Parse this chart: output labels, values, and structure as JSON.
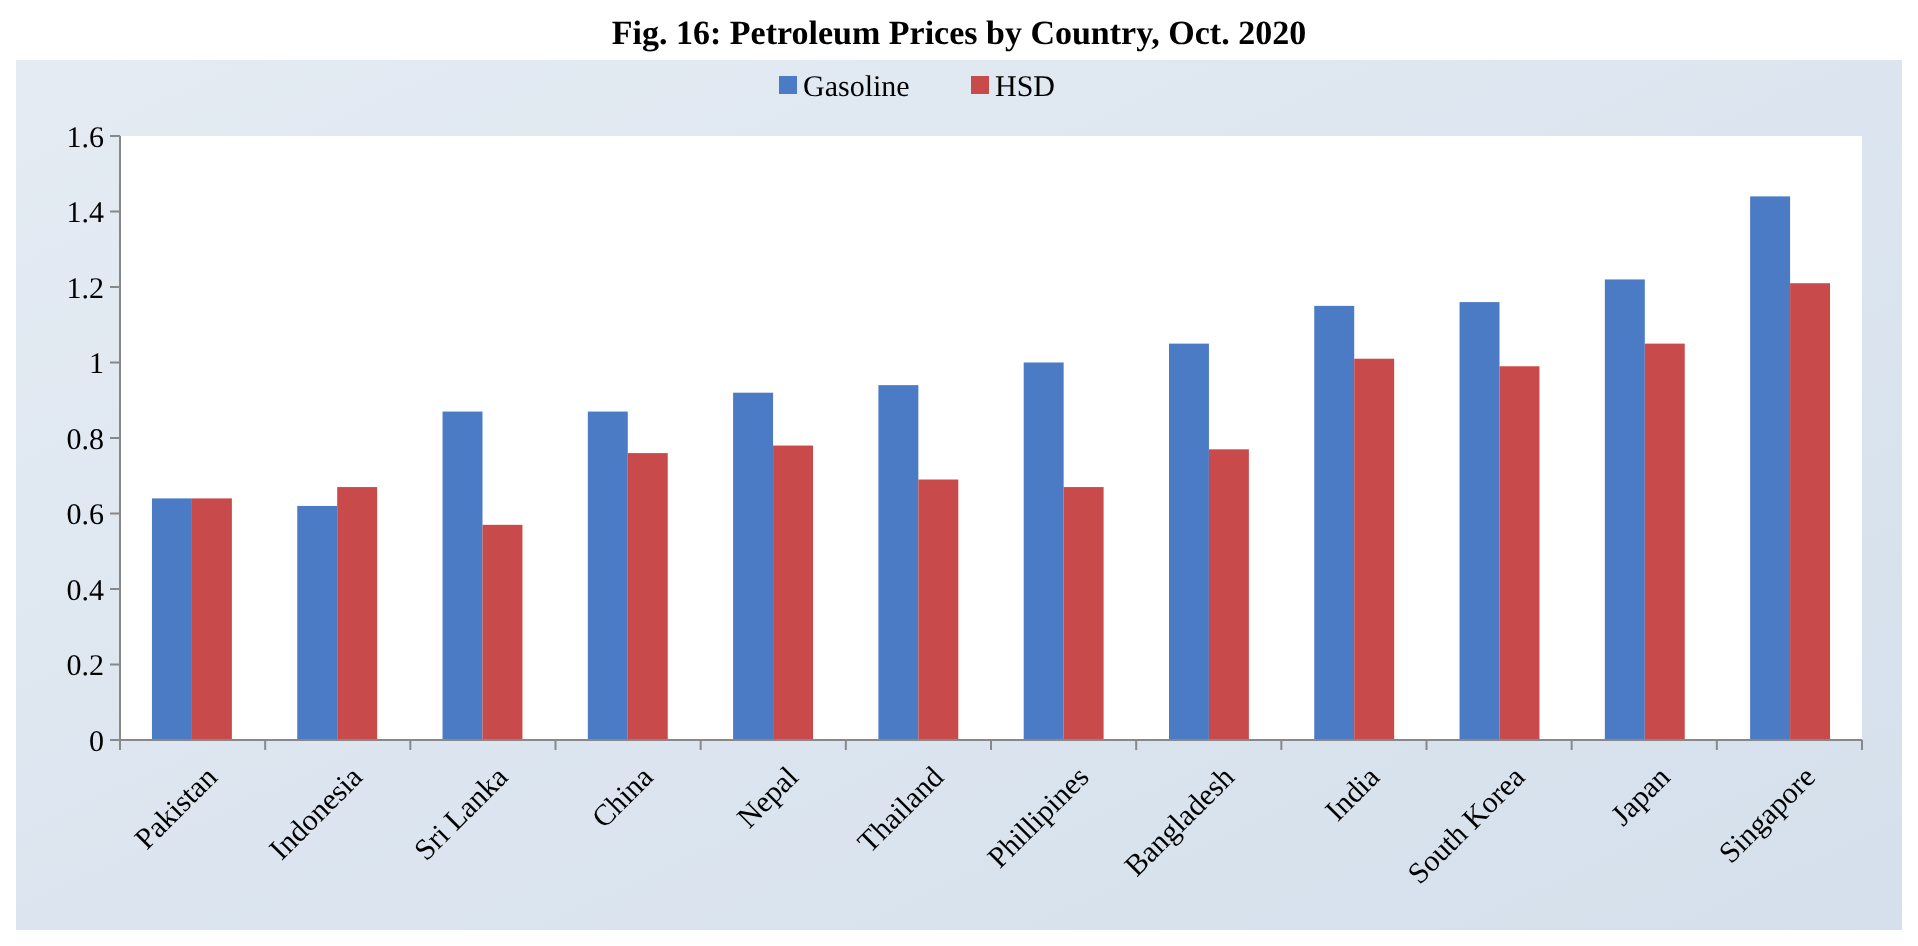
{
  "chart_data": {
    "type": "bar",
    "title": "Fig. 16: Petroleum Prices by Country, Oct. 2020",
    "categories": [
      "Pakistan",
      "Indonesia",
      "Sri Lanka",
      "China",
      "Nepal",
      "Thailand",
      "Phillipines",
      "Bangladesh",
      "India",
      "South Korea",
      "Japan",
      "Singapore"
    ],
    "series": [
      {
        "name": "Gasoline",
        "color": "#4a7bc4",
        "values": [
          0.64,
          0.62,
          0.87,
          0.87,
          0.92,
          0.94,
          1.0,
          1.05,
          1.15,
          1.16,
          1.22,
          1.44
        ]
      },
      {
        "name": "HSD",
        "color": "#c94a4a",
        "values": [
          0.64,
          0.67,
          0.57,
          0.76,
          0.78,
          0.69,
          0.67,
          0.77,
          1.01,
          0.99,
          1.05,
          1.21
        ]
      }
    ],
    "ylim": [
      0,
      1.6
    ],
    "yticks": [
      0,
      0.2,
      0.4,
      0.6,
      0.8,
      1,
      1.2,
      1.4,
      1.6
    ],
    "grid": false,
    "legend": "top"
  }
}
